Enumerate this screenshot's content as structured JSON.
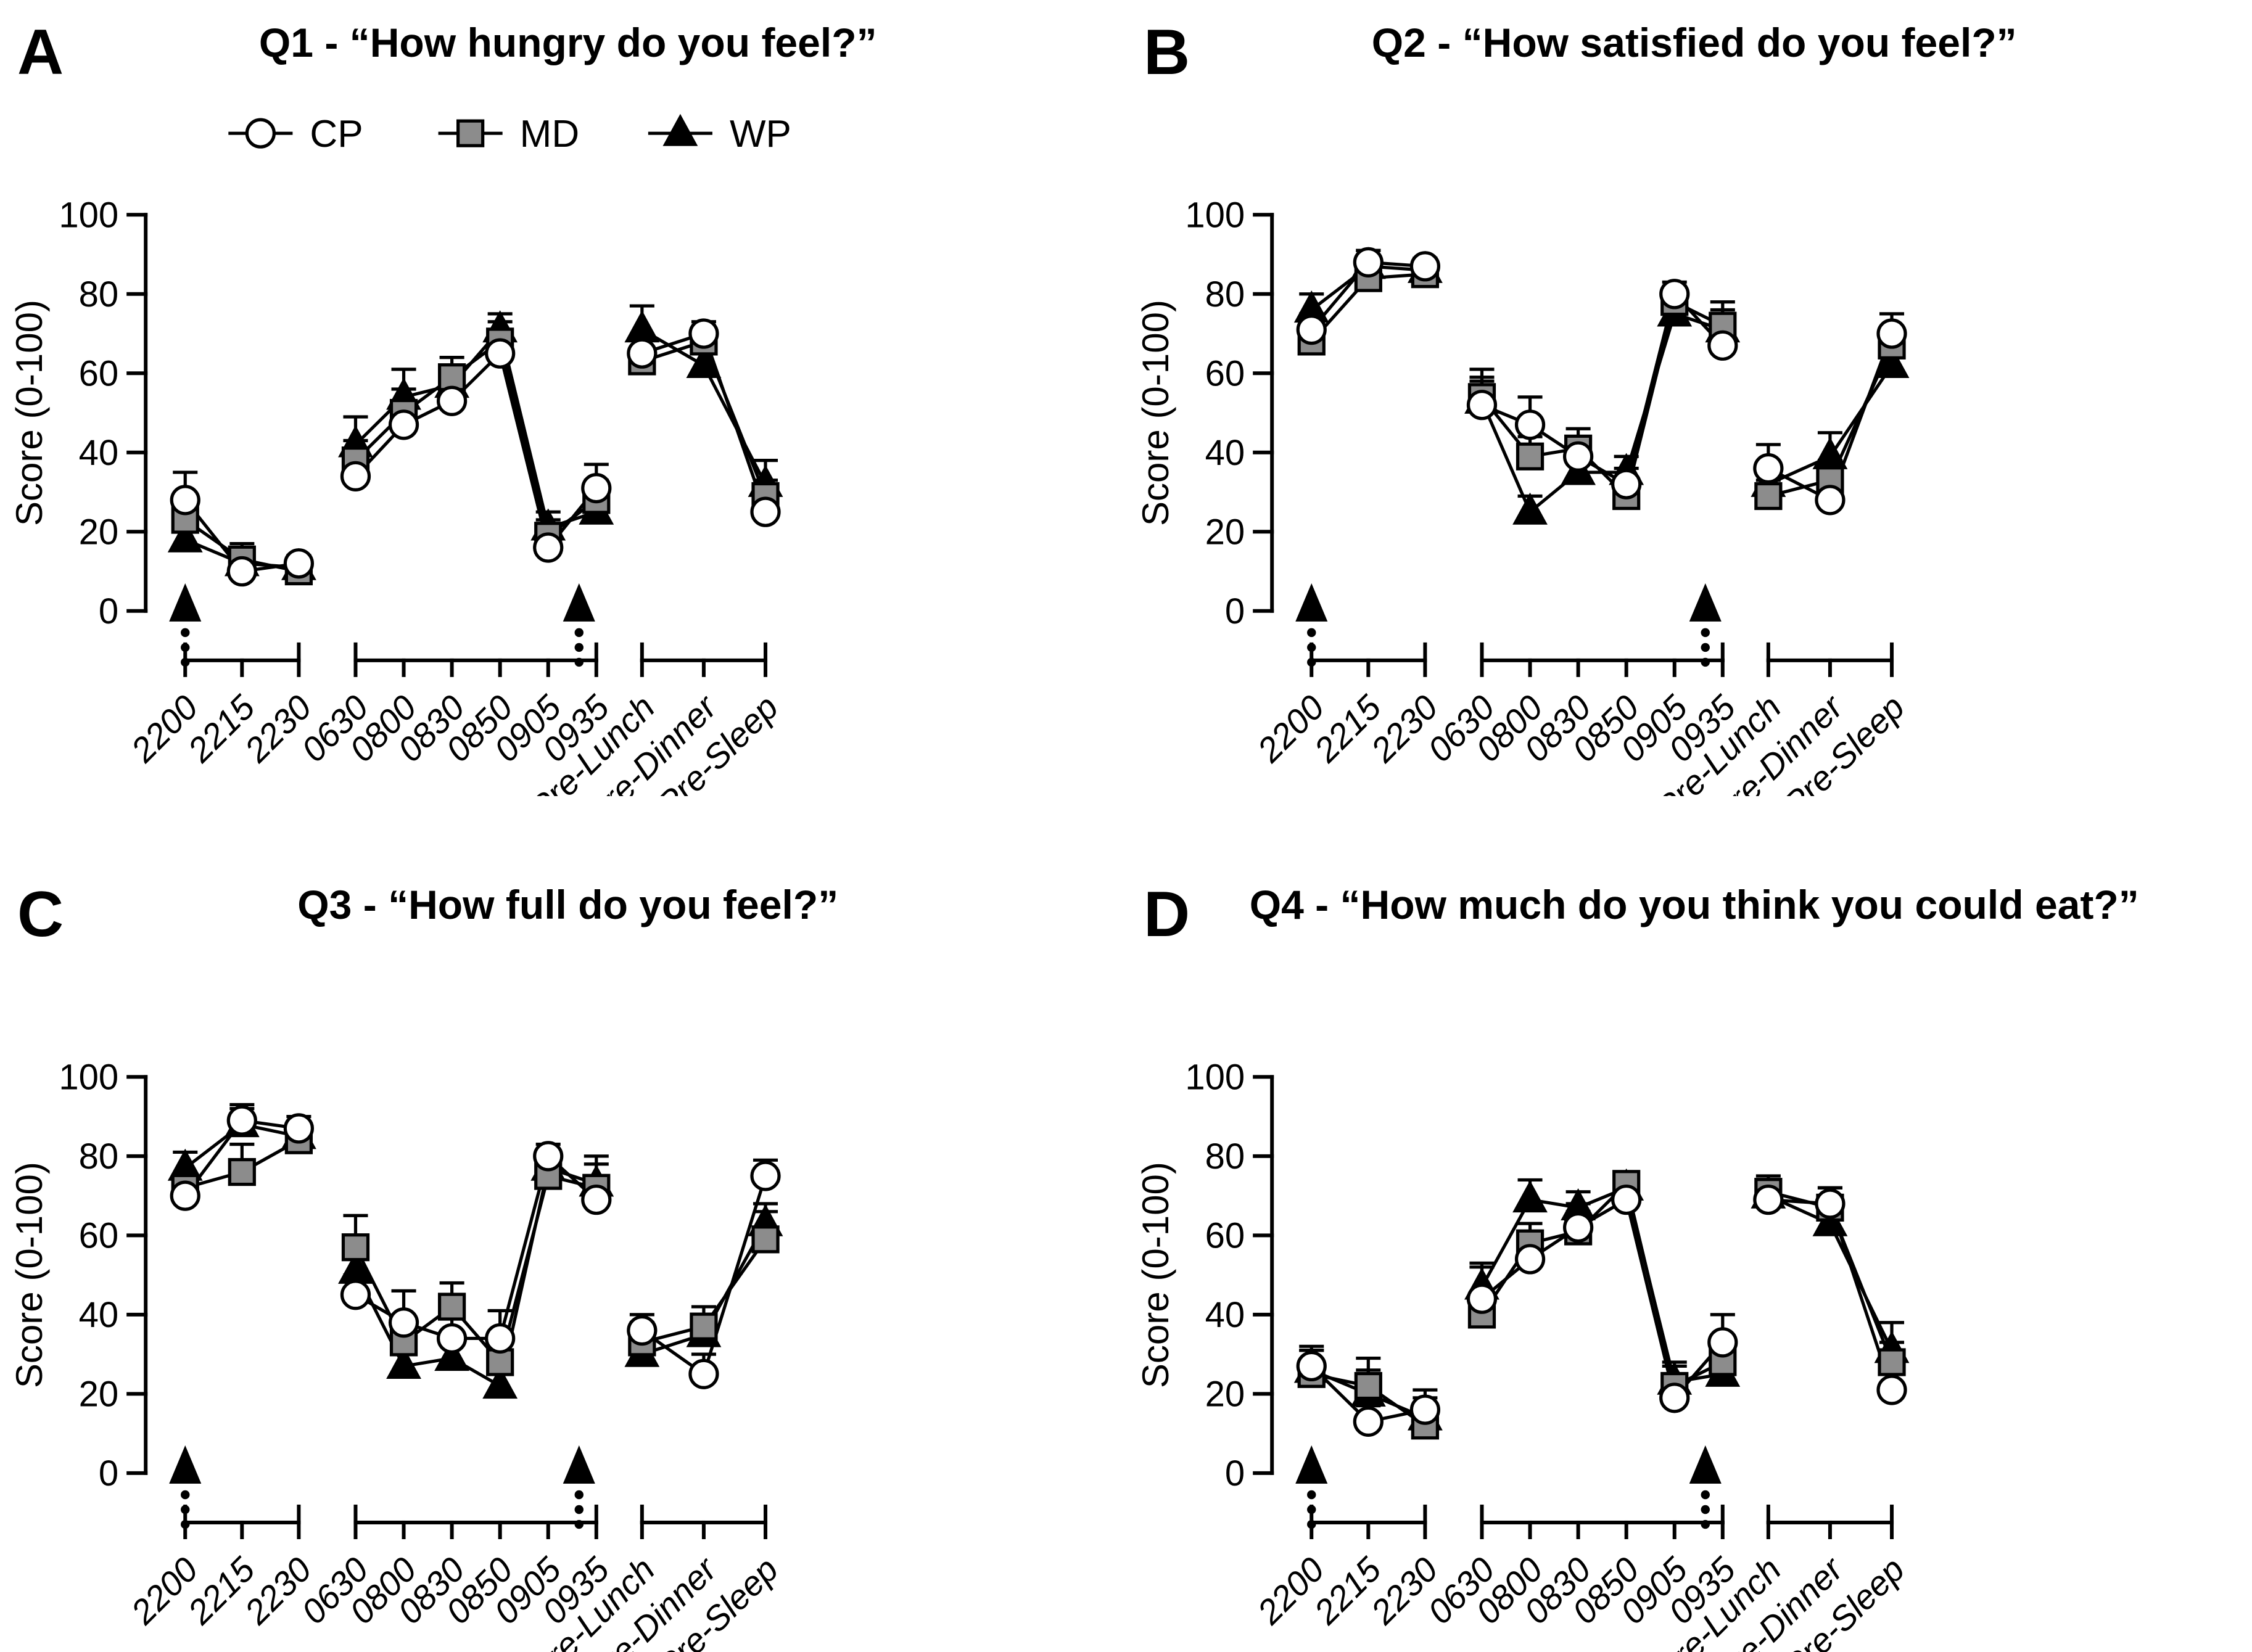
{
  "figure": {
    "background": "#ffffff",
    "stroke_color": "#000000",
    "series_styles": {
      "CP": {
        "marker": "open-circle",
        "fill": "#ffffff"
      },
      "MD": {
        "marker": "gray-square",
        "fill": "#8c8c8c"
      },
      "WP": {
        "marker": "black-triangle",
        "fill": "#000000"
      }
    },
    "legend": {
      "position": "top-of-panel-A",
      "items": [
        {
          "label": "CP",
          "marker": "open-circle"
        },
        {
          "label": "MD",
          "marker": "gray-square"
        },
        {
          "label": "WP",
          "marker": "black-triangle"
        }
      ]
    }
  },
  "chart_data": [
    {
      "type": "line",
      "panel": "A",
      "title": "Q1 - “How hungry do you feel?”",
      "ylabel": "Score (0-100)",
      "ylim": [
        0,
        100
      ],
      "yticks": [
        0,
        20,
        40,
        60,
        80,
        100
      ],
      "categories": [
        "2200",
        "2215",
        "2230",
        "0630",
        "0800",
        "0830",
        "0850",
        "0905",
        "0935",
        "Pre-Lunch",
        "Pre-Dinner",
        "Pre-Sleep"
      ],
      "segments": [
        [
          0,
          2
        ],
        [
          3,
          8
        ],
        [
          9,
          11
        ]
      ],
      "event_arrows": [
        "2200",
        "0935"
      ],
      "show_legend": true,
      "grid": false,
      "series": [
        {
          "name": "CP",
          "values": [
            28,
            10,
            12,
            34,
            47,
            53,
            65,
            16,
            31,
            65,
            70,
            25
          ],
          "errors": [
            7,
            2,
            2,
            5,
            6,
            4,
            5,
            3,
            6,
            4,
            3,
            3
          ]
        },
        {
          "name": "MD",
          "values": [
            23,
            13,
            10,
            38,
            50,
            59,
            68,
            19,
            28,
            63,
            68,
            29
          ],
          "errors": [
            5,
            4,
            2,
            5,
            6,
            5,
            5,
            4,
            5,
            3,
            4,
            4
          ]
        },
        {
          "name": "WP",
          "values": [
            18,
            12,
            11,
            42,
            54,
            57,
            71,
            21,
            25,
            71,
            62,
            32
          ],
          "errors": [
            4,
            3,
            2,
            7,
            7,
            5,
            4,
            4,
            4,
            6,
            3,
            6
          ]
        }
      ]
    },
    {
      "type": "line",
      "panel": "B",
      "title": "Q2 - “How satisfied do you feel?”",
      "ylabel": "Score (0-100)",
      "ylim": [
        0,
        100
      ],
      "yticks": [
        0,
        20,
        40,
        60,
        80,
        100
      ],
      "categories": [
        "2200",
        "2215",
        "2230",
        "0630",
        "0800",
        "0830",
        "0850",
        "0905",
        "0935",
        "Pre-Lunch",
        "Pre-Dinner",
        "Pre-Sleep"
      ],
      "segments": [
        [
          0,
          2
        ],
        [
          3,
          8
        ],
        [
          9,
          11
        ]
      ],
      "event_arrows": [
        "2200",
        "0935"
      ],
      "show_legend": false,
      "grid": false,
      "series": [
        {
          "name": "CP",
          "values": [
            71,
            88,
            87,
            52,
            47,
            39,
            32,
            80,
            67,
            36,
            28,
            70
          ],
          "errors": [
            4,
            3,
            2,
            6,
            7,
            5,
            4,
            3,
            4,
            6,
            3,
            5
          ]
        },
        {
          "name": "MD",
          "values": [
            68,
            84,
            85,
            54,
            39,
            41,
            29,
            78,
            72,
            29,
            33,
            67
          ],
          "errors": [
            3,
            3,
            2,
            7,
            5,
            5,
            3,
            4,
            6,
            4,
            5,
            4
          ]
        },
        {
          "name": "WP",
          "values": [
            76,
            87,
            86,
            53,
            25,
            35,
            35,
            75,
            71,
            32,
            39,
            62
          ],
          "errors": [
            4,
            4,
            3,
            6,
            4,
            5,
            4,
            4,
            5,
            5,
            6,
            4
          ]
        }
      ]
    },
    {
      "type": "line",
      "panel": "C",
      "title": "Q3 - “How full do you feel?”",
      "ylabel": "Score (0-100)",
      "ylim": [
        0,
        100
      ],
      "yticks": [
        0,
        20,
        40,
        60,
        80,
        100
      ],
      "categories": [
        "2200",
        "2215",
        "2230",
        "0630",
        "0800",
        "0830",
        "0850",
        "0905",
        "0935",
        "Pre-Lunch",
        "Pre-Dinner",
        "Pre-Sleep"
      ],
      "segments": [
        [
          0,
          2
        ],
        [
          3,
          8
        ],
        [
          9,
          11
        ]
      ],
      "event_arrows": [
        "2200",
        "0935"
      ],
      "show_legend": false,
      "grid": false,
      "series": [
        {
          "name": "CP",
          "values": [
            70,
            89,
            87,
            45,
            38,
            34,
            34,
            80,
            69,
            36,
            25,
            75
          ],
          "errors": [
            3,
            4,
            3,
            5,
            8,
            5,
            7,
            3,
            5,
            4,
            5,
            4
          ]
        },
        {
          "name": "MD",
          "values": [
            72,
            76,
            84,
            57,
            33,
            42,
            28,
            75,
            72,
            33,
            37,
            59
          ],
          "errors": [
            3,
            7,
            2,
            8,
            6,
            6,
            5,
            4,
            6,
            5,
            5,
            7
          ]
        },
        {
          "name": "WP",
          "values": [
            77,
            88,
            85,
            51,
            27,
            29,
            22,
            77,
            73,
            30,
            35,
            63
          ],
          "errors": [
            4,
            4,
            3,
            4,
            4,
            5,
            4,
            4,
            7,
            4,
            5,
            5
          ]
        }
      ]
    },
    {
      "type": "line",
      "panel": "D",
      "title": "Q4 - “How much do you think you could eat?”",
      "ylabel": "Score (0-100)",
      "ylim": [
        0,
        100
      ],
      "yticks": [
        0,
        20,
        40,
        60,
        80,
        100
      ],
      "categories": [
        "2200",
        "2215",
        "2230",
        "0630",
        "0800",
        "0830",
        "0850",
        "0905",
        "0935",
        "Pre-Lunch",
        "Pre-Dinner",
        "Pre-Sleep"
      ],
      "segments": [
        [
          0,
          2
        ],
        [
          3,
          8
        ],
        [
          9,
          11
        ]
      ],
      "event_arrows": [
        "2200",
        "0935"
      ],
      "show_legend": false,
      "grid": false,
      "series": [
        {
          "name": "CP",
          "values": [
            27,
            13,
            16,
            44,
            54,
            62,
            69,
            19,
            33,
            69,
            68,
            21
          ],
          "errors": [
            5,
            4,
            5,
            8,
            5,
            6,
            5,
            4,
            7,
            5,
            4,
            4
          ]
        },
        {
          "name": "MD",
          "values": [
            25,
            22,
            12,
            40,
            58,
            61,
            73,
            22,
            28,
            71,
            67,
            28
          ],
          "errors": [
            6,
            7,
            4,
            4,
            5,
            5,
            3,
            5,
            5,
            4,
            5,
            5
          ]
        },
        {
          "name": "WP",
          "values": [
            26,
            20,
            14,
            47,
            69,
            67,
            72,
            23,
            25,
            70,
            63,
            31
          ],
          "errors": [
            5,
            6,
            5,
            6,
            5,
            4,
            3,
            5,
            5,
            4,
            4,
            7
          ]
        }
      ]
    }
  ]
}
